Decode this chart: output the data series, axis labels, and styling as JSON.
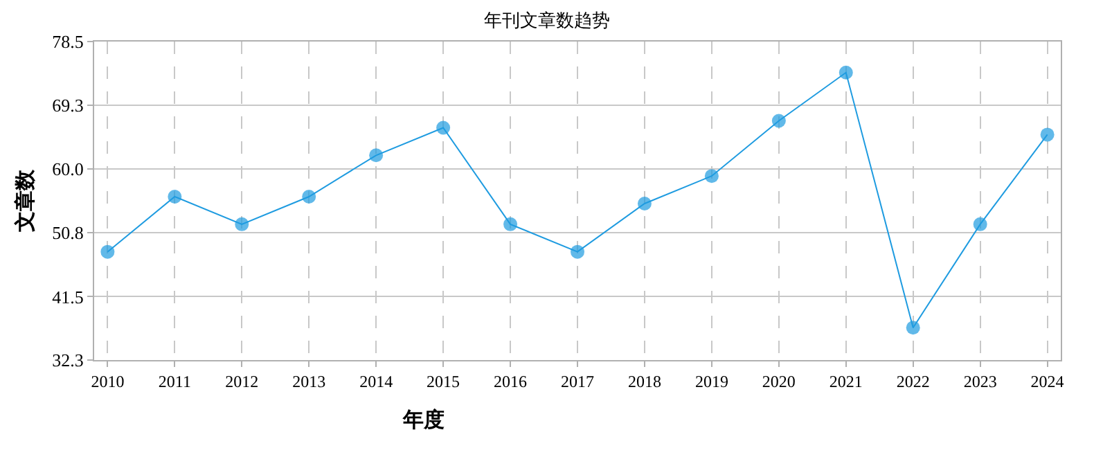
{
  "chart_data": {
    "type": "line",
    "title": "年刊文章数趋势",
    "xlabel": "年度",
    "ylabel": "文章数",
    "categories": [
      "2010",
      "2011",
      "2012",
      "2013",
      "2014",
      "2015",
      "2016",
      "2017",
      "2018",
      "2019",
      "2020",
      "2021",
      "2022",
      "2023",
      "2024"
    ],
    "series": [
      {
        "color": "#1e9be0",
        "values": [
          48,
          56,
          52,
          56,
          62,
          66,
          52,
          48,
          55,
          59,
          67,
          74,
          37,
          52,
          65
        ]
      }
    ],
    "ylim": [
      32.3,
      78.5
    ],
    "yticks": [
      32.3,
      41.5,
      50.8,
      {
        "value": 60,
        "label": "60.0"
      },
      69.3,
      78.5
    ],
    "grid": true,
    "marker": "circle",
    "line_style": "solid"
  }
}
